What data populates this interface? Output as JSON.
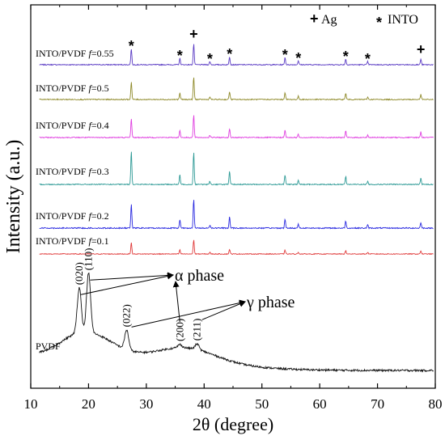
{
  "chart_data": {
    "type": "line",
    "xlabel": "2θ (degree)",
    "ylabel": "Intensity (a.u.)",
    "xlim": [
      10,
      80
    ],
    "x_ticks": [
      10,
      20,
      30,
      40,
      50,
      60,
      70,
      80
    ],
    "legend": {
      "placement": "top-right",
      "entries": [
        {
          "symbol": "+",
          "label": "Ag"
        },
        {
          "symbol": "*",
          "label": "INTO"
        }
      ]
    },
    "series": [
      {
        "name": "INTO/PVDF f=0.55",
        "label_prefix": "INTO/PVDF ",
        "label_f": "f",
        "label_value": "=0.55",
        "color": "#5b3cc4",
        "noise": 0.6,
        "peaks": [
          [
            27.4,
            20
          ],
          [
            35.8,
            8
          ],
          [
            38.2,
            26
          ],
          [
            41.0,
            4
          ],
          [
            44.4,
            10
          ],
          [
            54.0,
            9
          ],
          [
            56.3,
            5
          ],
          [
            64.5,
            7
          ],
          [
            68.3,
            4
          ],
          [
            77.5,
            7
          ]
        ]
      },
      {
        "name": "INTO/PVDF f=0.5",
        "label_prefix": "INTO/PVDF ",
        "label_f": "f",
        "label_value": "=0.5",
        "color": "#8f8a2a",
        "noise": 0.6,
        "peaks": [
          [
            27.4,
            22
          ],
          [
            35.8,
            8
          ],
          [
            38.2,
            28
          ],
          [
            41.0,
            3
          ],
          [
            44.4,
            10
          ],
          [
            54.0,
            9
          ],
          [
            56.3,
            4
          ],
          [
            64.5,
            8
          ],
          [
            68.3,
            3
          ],
          [
            77.5,
            6
          ]
        ]
      },
      {
        "name": "INTO/PVDF f=0.4",
        "label_prefix": "INTO/PVDF ",
        "label_f": "f",
        "label_value": "=0.4",
        "color": "#e040e0",
        "noise": 0.6,
        "peaks": [
          [
            27.4,
            24
          ],
          [
            35.8,
            9
          ],
          [
            38.2,
            28
          ],
          [
            41.0,
            3
          ],
          [
            44.4,
            11
          ],
          [
            54.0,
            9
          ],
          [
            56.3,
            4
          ],
          [
            64.5,
            8
          ],
          [
            68.3,
            3
          ],
          [
            77.5,
            7
          ]
        ]
      },
      {
        "name": "INTO/PVDF f=0.3",
        "label_prefix": "INTO/PVDF ",
        "label_f": "f",
        "label_value": "=0.3",
        "color": "#2e9a96",
        "noise": 0.6,
        "peaks": [
          [
            27.4,
            42
          ],
          [
            35.8,
            12
          ],
          [
            38.2,
            40
          ],
          [
            41.0,
            4
          ],
          [
            44.4,
            16
          ],
          [
            54.0,
            12
          ],
          [
            56.3,
            5
          ],
          [
            64.5,
            10
          ],
          [
            68.3,
            4
          ],
          [
            77.5,
            8
          ]
        ]
      },
      {
        "name": "INTO/PVDF f=0.2",
        "label_prefix": "INTO/PVDF ",
        "label_f": "f",
        "label_value": "=0.2",
        "color": "#2a2ae0",
        "noise": 0.7,
        "peaks": [
          [
            27.4,
            30
          ],
          [
            35.8,
            11
          ],
          [
            38.2,
            36
          ],
          [
            41.0,
            4
          ],
          [
            44.4,
            14
          ],
          [
            54.0,
            11
          ],
          [
            56.3,
            5
          ],
          [
            64.5,
            9
          ],
          [
            68.3,
            4
          ],
          [
            77.5,
            7
          ]
        ]
      },
      {
        "name": "INTO/PVDF f=0.1",
        "label_prefix": "INTO/PVDF ",
        "label_f": "f",
        "label_value": "=0.1",
        "color": "#e03a3a",
        "noise": 0.5,
        "peaks": [
          [
            27.4,
            14
          ],
          [
            35.8,
            5
          ],
          [
            38.2,
            18
          ],
          [
            41.0,
            2
          ],
          [
            44.4,
            6
          ],
          [
            54.0,
            5
          ],
          [
            56.3,
            2
          ],
          [
            64.5,
            4
          ],
          [
            68.3,
            2
          ],
          [
            77.5,
            4
          ]
        ]
      },
      {
        "name": "PVDF",
        "label_prefix": "PVDF",
        "label_f": "",
        "label_value": "",
        "color": "#111111",
        "noise": 1.2,
        "peaks": [
          [
            18.4,
            58
          ],
          [
            20.0,
            74
          ],
          [
            26.6,
            24
          ],
          [
            35.8,
            4
          ],
          [
            38.8,
            7
          ]
        ],
        "broad": [
          [
            19.5,
            36,
            4.5
          ],
          [
            37.0,
            16,
            5.0
          ],
          [
            30.0,
            14,
            12.0
          ]
        ]
      }
    ],
    "markers": [
      {
        "symbol": "*",
        "x": 27.4
      },
      {
        "symbol": "*",
        "x": 35.8
      },
      {
        "symbol": "+",
        "x": 38.2
      },
      {
        "symbol": "*",
        "x": 41.0
      },
      {
        "symbol": "*",
        "x": 44.4
      },
      {
        "symbol": "*",
        "x": 54.0
      },
      {
        "symbol": "*",
        "x": 56.3
      },
      {
        "symbol": "*",
        "x": 64.5
      },
      {
        "symbol": "*",
        "x": 68.3
      },
      {
        "symbol": "+",
        "x": 77.5
      }
    ],
    "peak_labels": [
      {
        "text": "(020)",
        "x": 18.4
      },
      {
        "text": "(110)",
        "x": 20.0
      },
      {
        "text": "(022)",
        "x": 26.6
      },
      {
        "text": "(200)",
        "x": 35.8
      },
      {
        "text": "(211)",
        "x": 38.8
      }
    ],
    "annotations": [
      {
        "text": "α phase",
        "targets_x": [
          18.4,
          20.0,
          35.8
        ]
      },
      {
        "text": "γ phase",
        "targets_x": [
          26.6,
          38.8
        ]
      }
    ]
  }
}
